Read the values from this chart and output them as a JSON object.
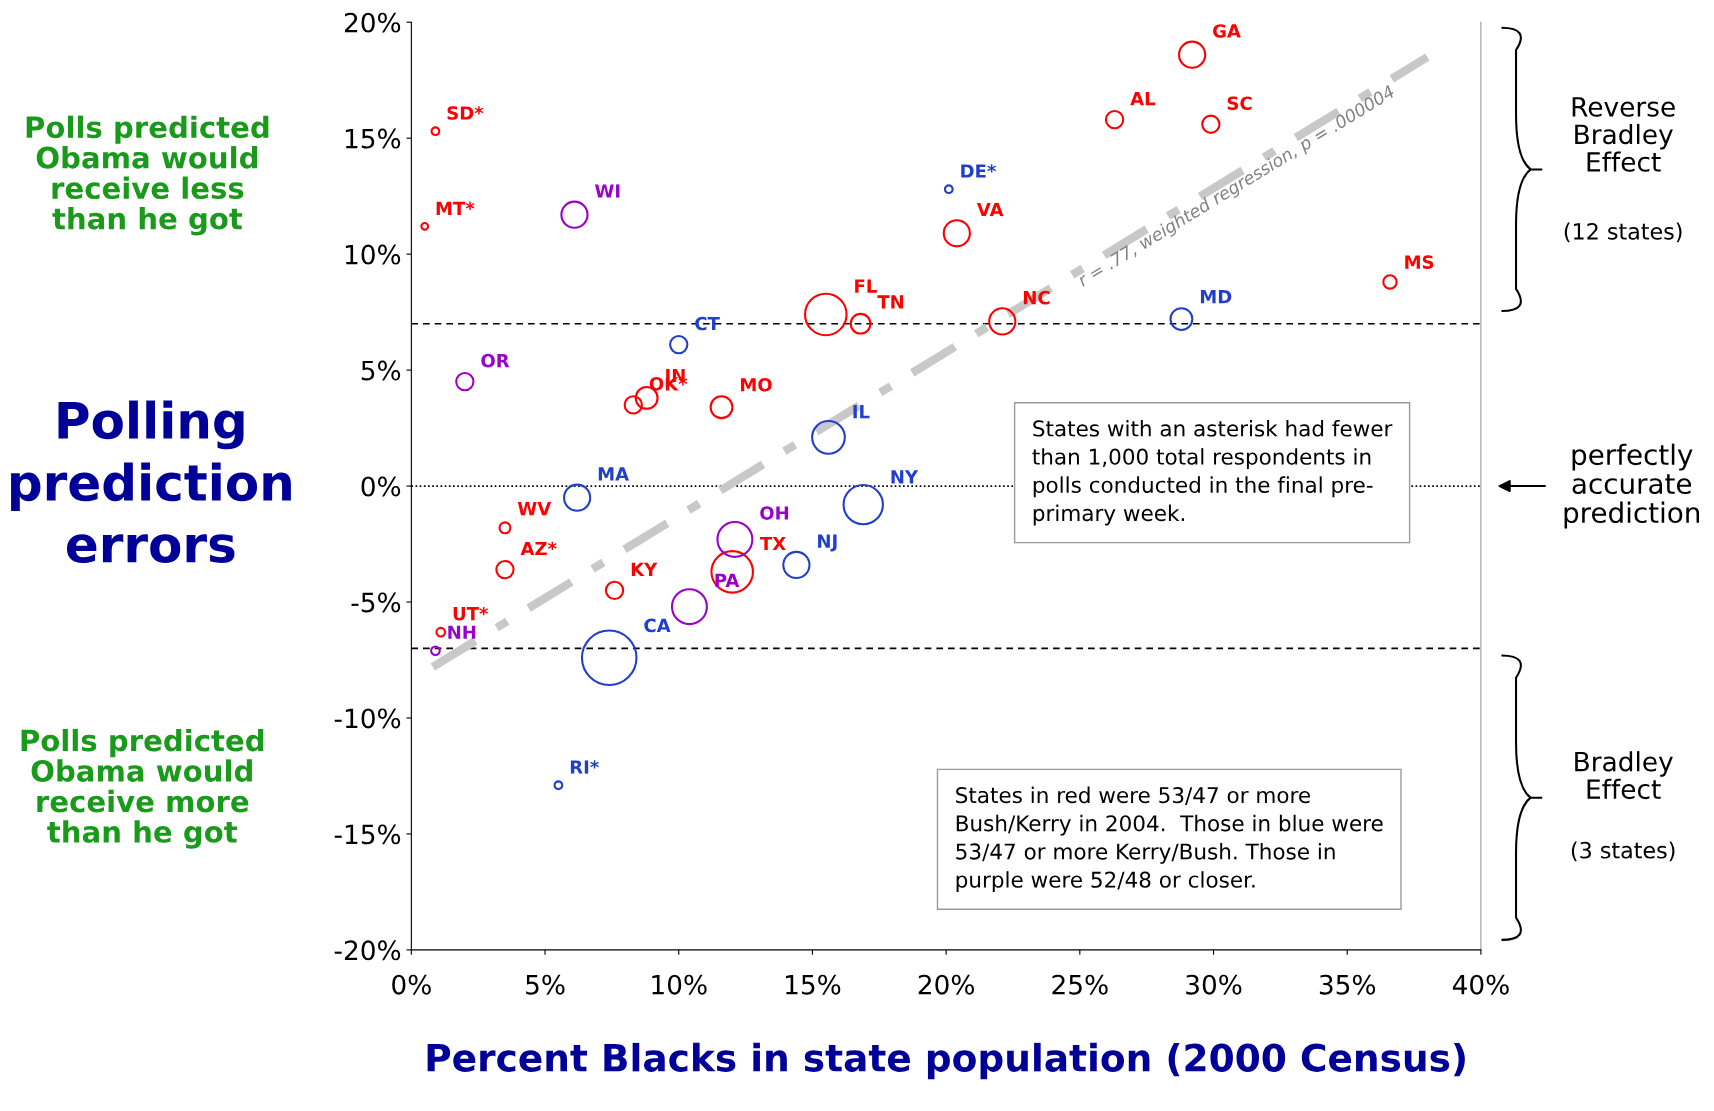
{
  "chart_data": {
    "type": "bubble",
    "xlabel": "Percent Blacks in state population (2000 Census)",
    "ylabel": "Polling prediction errors",
    "xlim": [
      0,
      40
    ],
    "ylim": [
      -20,
      20
    ],
    "xticks": [
      {
        "value": 0,
        "label": "0%"
      },
      {
        "value": 5,
        "label": "5%"
      },
      {
        "value": 10,
        "label": "10%"
      },
      {
        "value": 15,
        "label": "15%"
      },
      {
        "value": 20,
        "label": "20%"
      },
      {
        "value": 25,
        "label": "25%"
      },
      {
        "value": 30,
        "label": "30%"
      },
      {
        "value": 35,
        "label": "35%"
      },
      {
        "value": 40,
        "label": "40%"
      }
    ],
    "yticks": [
      {
        "value": -20,
        "label": "-20%"
      },
      {
        "value": -15,
        "label": "-15%"
      },
      {
        "value": -10,
        "label": "-10%"
      },
      {
        "value": -5,
        "label": "-5%"
      },
      {
        "value": 0,
        "label": "0%"
      },
      {
        "value": 5,
        "label": "5%"
      },
      {
        "value": 10,
        "label": "10%"
      },
      {
        "value": 15,
        "label": "15%"
      },
      {
        "value": 20,
        "label": "20%"
      }
    ],
    "grid": false,
    "legend": false,
    "series": [
      {
        "color": "#ff0000",
        "x": [
          0.9,
          0.5,
          3.5,
          1.1,
          3.5,
          7.6,
          12.0,
          8.3,
          8.8,
          11.6,
          15.5,
          16.8,
          22.1,
          20.4,
          26.3,
          29.9,
          29.2,
          36.6
        ],
        "values": [
          15.3,
          11.2,
          -3.6,
          -6.3,
          -1.8,
          -4.5,
          -3.7,
          3.5,
          3.8,
          3.4,
          7.4,
          7.0,
          7.1,
          10.9,
          15.8,
          15.6,
          18.6,
          8.8
        ],
        "sizes": [
          0.02,
          0.015,
          0.1,
          0.025,
          0.04,
          0.1,
          0.58,
          0.1,
          0.16,
          0.16,
          0.58,
          0.13,
          0.23,
          0.23,
          0.1,
          0.1,
          0.23,
          0.06
        ],
        "value_labels": [
          "SD*",
          "MT*",
          "AZ*",
          "UT*",
          "WV",
          "KY",
          "TX",
          "OK*",
          "IN",
          "MO",
          "FL",
          "TN",
          "NC",
          "VA",
          "AL",
          "SC",
          "GA",
          "MS"
        ]
      },
      {
        "color": "#1f3fcc",
        "x": [
          10.0,
          6.2,
          16.9,
          14.4,
          15.6,
          28.8,
          20.1,
          5.5,
          7.4
        ],
        "values": [
          6.1,
          -0.5,
          -0.8,
          -3.4,
          2.1,
          7.2,
          12.8,
          -12.9,
          -7.4
        ],
        "sizes": [
          0.1,
          0.23,
          0.52,
          0.23,
          0.36,
          0.16,
          0.02,
          0.02,
          1
        ],
        "value_labels": [
          "CT",
          "MA",
          "NY",
          "NJ",
          "IL",
          "MD",
          "DE*",
          "RI*",
          "CA"
        ]
      },
      {
        "color": "#9900cc",
        "x": [
          6.1,
          2.0,
          0.9,
          10.4,
          12.1
        ],
        "values": [
          11.7,
          4.5,
          -7.1,
          -5.2,
          -2.3
        ],
        "sizes": [
          0.23,
          0.1,
          0.025,
          0.41,
          0.41
        ],
        "value_labels": [
          "WI",
          "OR",
          "NH",
          "PA",
          "OH"
        ]
      },
      {
        "type": "line",
        "color": "#c8c8c8",
        "line_style": "dashdot",
        "x": [
          0.8,
          38.0
        ],
        "values": [
          -7.8,
          18.5
        ]
      }
    ],
    "ref_lines": [
      {
        "axis": "y",
        "value": 7,
        "line_style": "dashed",
        "color": "#000000"
      },
      {
        "axis": "y",
        "value": -7,
        "line_style": "dashed",
        "color": "#000000"
      },
      {
        "axis": "y",
        "value": 0,
        "line_style": "dotted",
        "color": "#000000"
      }
    ],
    "annotations": [
      "r = .77, weighted regression, p = .000004",
      "Polls predicted\nObama would\nreceive less\nthan he got",
      "Polls predicted\nObama would\nreceive more\nthan he got",
      "Reverse\nBradley\nEffect",
      "(12 states)",
      "perfectly\naccurate\nprediction",
      "Bradley\nEffect",
      "(3 states)",
      "States with an asterisk had fewer\nthan 1,000 total respondents in\npolls conducted in the final pre-\nprimary week.",
      "States in red were 53/47 or more\nBush/Kerry in 2004.  Those in blue were\n53/47 or more Kerry/Bush. Those in\npurple were 52/48 or closer."
    ]
  }
}
